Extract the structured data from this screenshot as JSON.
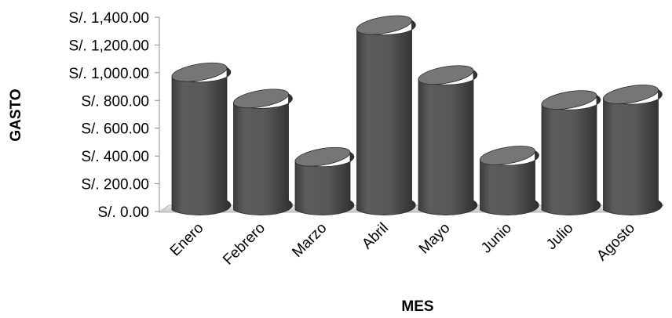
{
  "chart_data": {
    "type": "bar",
    "style": "3d-cylinder",
    "categories": [
      "Enero",
      "Febrero",
      "Marzo",
      "Abril",
      "Mayo",
      "Junio",
      "Julio",
      "Agosto"
    ],
    "values": [
      970,
      780,
      360,
      1310,
      950,
      370,
      770,
      810
    ],
    "xlabel": "MES",
    "ylabel": "GASTO",
    "ylim": [
      0,
      1400
    ],
    "yticks": [
      0,
      200,
      400,
      600,
      800,
      1000,
      1200,
      1400
    ],
    "ytick_labels": [
      "S/. 0.00",
      "S/. 200.00",
      "S/. 400.00",
      "S/. 600.00",
      "S/. 800.00",
      "S/. 1,000.00",
      "S/. 1,200.00",
      "S/. 1,400.00"
    ],
    "grid": false,
    "legend": "none",
    "bar_color": "#5a5a5a",
    "bar_top_color": "#767676"
  }
}
